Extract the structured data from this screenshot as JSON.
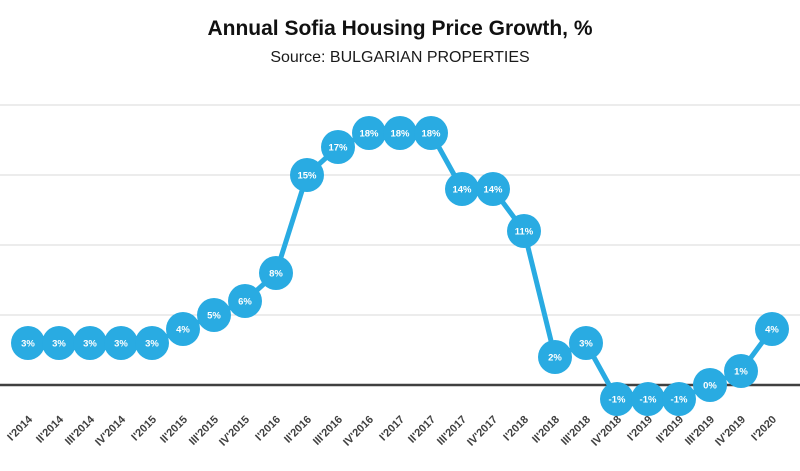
{
  "chart_data": {
    "type": "line",
    "title": "Annual Sofia Housing Price Growth, %",
    "subtitle": "Source: BULGARIAN PROPERTIES",
    "xlabel": "",
    "ylabel": "",
    "legend": "none",
    "grid": true,
    "ylim": [
      -4,
      22
    ],
    "gridline_values": [
      5,
      10,
      15,
      20
    ],
    "zero_line_value": 0,
    "categories": [
      "I'2014",
      "II'2014",
      "III'2014",
      "IV'2014",
      "I'2015",
      "II'2015",
      "III'2015",
      "IV'2015",
      "I'2016",
      "II'2016",
      "III'2016",
      "IV'2016",
      "I'2017",
      "II'2017",
      "III'2017",
      "IV'2017",
      "I'2018",
      "II'2018",
      "III'2018",
      "IV'2018",
      "I'2019",
      "II'2019",
      "III'2019",
      "IV'2019",
      "I'2020"
    ],
    "values": [
      3,
      3,
      3,
      3,
      3,
      4,
      5,
      6,
      8,
      15,
      17,
      18,
      18,
      18,
      14,
      14,
      11,
      2,
      3,
      -1,
      -1,
      -1,
      0,
      1,
      4
    ],
    "point_labels": [
      "3%",
      "3%",
      "3%",
      "3%",
      "3%",
      "4%",
      "5%",
      "6%",
      "8%",
      "15%",
      "17%",
      "18%",
      "18%",
      "18%",
      "14%",
      "14%",
      "11%",
      "2%",
      "3%",
      "-1%",
      "-1%",
      "-1%",
      "0%",
      "1%",
      "4%"
    ],
    "colors": {
      "series": "#29ABE2",
      "point_label": "#FFFFFF",
      "gridline": "#D9D9D9",
      "zero_line": "#404040",
      "axis_label": "#404040",
      "title_text": "#111111",
      "background": "#FFFFFF"
    }
  }
}
